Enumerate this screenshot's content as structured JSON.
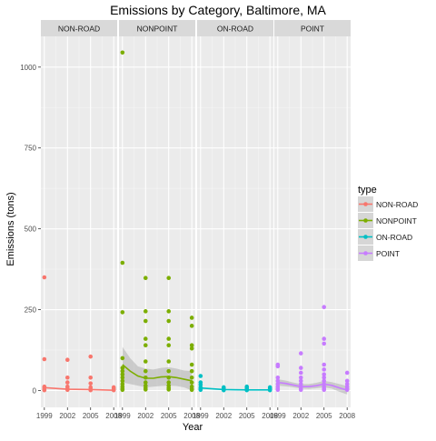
{
  "chart_data": {
    "type": "scatter",
    "title": "Emissions by Category, Baltimore, MA",
    "xlabel": "Year",
    "ylabel": "Emissions (tons)",
    "x_ticks": [
      1999,
      2002,
      2005,
      2008
    ],
    "x_tick_labels": [
      "1999",
      "2002",
      "2005",
      "2008"
    ],
    "y_ticks": [
      0,
      250,
      500,
      750,
      1000
    ],
    "y_tick_labels": [
      "0",
      "250",
      "500",
      "750",
      "1000"
    ],
    "xlim": [
      1998.55,
      2008.45
    ],
    "ylim": [
      -52,
      1095
    ],
    "grid": true,
    "legend": {
      "title": "type",
      "position": "right"
    },
    "facets": [
      {
        "name": "NON-ROAD",
        "color": "#F8766D",
        "points": [
          [
            1999,
            350
          ],
          [
            1999,
            97
          ],
          [
            1999,
            12
          ],
          [
            1999,
            8
          ],
          [
            1999,
            4
          ],
          [
            1999,
            1
          ],
          [
            2002,
            95
          ],
          [
            2002,
            40
          ],
          [
            2002,
            25
          ],
          [
            2002,
            12
          ],
          [
            2002,
            6
          ],
          [
            2002,
            2
          ],
          [
            2005,
            105
          ],
          [
            2005,
            40
          ],
          [
            2005,
            22
          ],
          [
            2005,
            10
          ],
          [
            2005,
            4
          ],
          [
            2005,
            1
          ],
          [
            2008,
            10
          ],
          [
            2008,
            5
          ],
          [
            2008,
            2
          ],
          [
            2008,
            1
          ]
        ],
        "trend": [
          [
            1999,
            9
          ],
          [
            2002,
            4
          ],
          [
            2005,
            3
          ],
          [
            2008,
            1
          ]
        ],
        "band": []
      },
      {
        "name": "NONPOINT",
        "color": "#7CAE00",
        "points": [
          [
            1999,
            1045
          ],
          [
            1999,
            395
          ],
          [
            1999,
            242
          ],
          [
            1999,
            100
          ],
          [
            1999,
            70
          ],
          [
            1999,
            60
          ],
          [
            1999,
            50
          ],
          [
            1999,
            40
          ],
          [
            1999,
            30
          ],
          [
            1999,
            20
          ],
          [
            1999,
            12
          ],
          [
            1999,
            6
          ],
          [
            1999,
            2
          ],
          [
            2002,
            348
          ],
          [
            2002,
            245
          ],
          [
            2002,
            215
          ],
          [
            2002,
            160
          ],
          [
            2002,
            140
          ],
          [
            2002,
            90
          ],
          [
            2002,
            60
          ],
          [
            2002,
            40
          ],
          [
            2002,
            25
          ],
          [
            2002,
            15
          ],
          [
            2002,
            8
          ],
          [
            2002,
            3
          ],
          [
            2005,
            348
          ],
          [
            2005,
            245
          ],
          [
            2005,
            215
          ],
          [
            2005,
            160
          ],
          [
            2005,
            140
          ],
          [
            2005,
            90
          ],
          [
            2005,
            60
          ],
          [
            2005,
            40
          ],
          [
            2005,
            25
          ],
          [
            2005,
            15
          ],
          [
            2005,
            8
          ],
          [
            2005,
            3
          ],
          [
            2008,
            225
          ],
          [
            2008,
            200
          ],
          [
            2008,
            140
          ],
          [
            2008,
            130
          ],
          [
            2008,
            80
          ],
          [
            2008,
            60
          ],
          [
            2008,
            40
          ],
          [
            2008,
            25
          ],
          [
            2008,
            12
          ],
          [
            2008,
            5
          ],
          [
            2008,
            2
          ]
        ],
        "trend": [
          [
            1999,
            80
          ],
          [
            2000,
            60
          ],
          [
            2001,
            45
          ],
          [
            2002,
            38
          ],
          [
            2003,
            38
          ],
          [
            2004,
            42
          ],
          [
            2005,
            43
          ],
          [
            2006,
            40
          ],
          [
            2007,
            35
          ],
          [
            2008,
            30
          ]
        ],
        "band": [
          [
            1999,
            25,
            135
          ],
          [
            2000,
            20,
            100
          ],
          [
            2001,
            15,
            75
          ],
          [
            2002,
            10,
            68
          ],
          [
            2003,
            12,
            65
          ],
          [
            2004,
            14,
            70
          ],
          [
            2005,
            15,
            72
          ],
          [
            2006,
            14,
            68
          ],
          [
            2007,
            10,
            62
          ],
          [
            2008,
            0,
            60
          ]
        ]
      },
      {
        "name": "ON-ROAD",
        "color": "#00BFC4",
        "points": [
          [
            1999,
            45
          ],
          [
            1999,
            25
          ],
          [
            1999,
            18
          ],
          [
            1999,
            10
          ],
          [
            1999,
            5
          ],
          [
            1999,
            2
          ],
          [
            2002,
            10
          ],
          [
            2002,
            6
          ],
          [
            2002,
            3
          ],
          [
            2002,
            1
          ],
          [
            2005,
            12
          ],
          [
            2005,
            7
          ],
          [
            2005,
            3
          ],
          [
            2005,
            1
          ],
          [
            2008,
            10
          ],
          [
            2008,
            5
          ],
          [
            2008,
            2
          ],
          [
            2008,
            1
          ]
        ],
        "trend": [
          [
            1999,
            8
          ],
          [
            2002,
            3
          ],
          [
            2005,
            2
          ],
          [
            2008,
            2
          ]
        ],
        "band": []
      },
      {
        "name": "POINT",
        "color": "#C77CFF",
        "points": [
          [
            1999,
            80
          ],
          [
            1999,
            75
          ],
          [
            1999,
            40
          ],
          [
            1999,
            30
          ],
          [
            1999,
            20
          ],
          [
            1999,
            12
          ],
          [
            1999,
            6
          ],
          [
            1999,
            2
          ],
          [
            2002,
            115
          ],
          [
            2002,
            70
          ],
          [
            2002,
            55
          ],
          [
            2002,
            40
          ],
          [
            2002,
            30
          ],
          [
            2002,
            20
          ],
          [
            2002,
            12
          ],
          [
            2002,
            6
          ],
          [
            2002,
            2
          ],
          [
            2005,
            258
          ],
          [
            2005,
            160
          ],
          [
            2005,
            145
          ],
          [
            2005,
            80
          ],
          [
            2005,
            65
          ],
          [
            2005,
            50
          ],
          [
            2005,
            40
          ],
          [
            2005,
            30
          ],
          [
            2005,
            20
          ],
          [
            2005,
            12
          ],
          [
            2005,
            6
          ],
          [
            2005,
            2
          ],
          [
            2008,
            55
          ],
          [
            2008,
            30
          ],
          [
            2008,
            20
          ],
          [
            2008,
            12
          ],
          [
            2008,
            6
          ],
          [
            2008,
            2
          ]
        ],
        "trend": [
          [
            1999,
            25
          ],
          [
            2000,
            22
          ],
          [
            2001,
            17
          ],
          [
            2002,
            12
          ],
          [
            2003,
            12
          ],
          [
            2004,
            15
          ],
          [
            2005,
            20
          ],
          [
            2006,
            16
          ],
          [
            2007,
            8
          ],
          [
            2008,
            1
          ]
        ],
        "band": [
          [
            1999,
            15,
            35
          ],
          [
            2000,
            13,
            31
          ],
          [
            2001,
            10,
            25
          ],
          [
            2002,
            6,
            20
          ],
          [
            2003,
            5,
            20
          ],
          [
            2004,
            7,
            24
          ],
          [
            2005,
            10,
            30
          ],
          [
            2006,
            6,
            26
          ],
          [
            2007,
            -4,
            20
          ],
          [
            2008,
            -12,
            14
          ]
        ]
      }
    ]
  }
}
